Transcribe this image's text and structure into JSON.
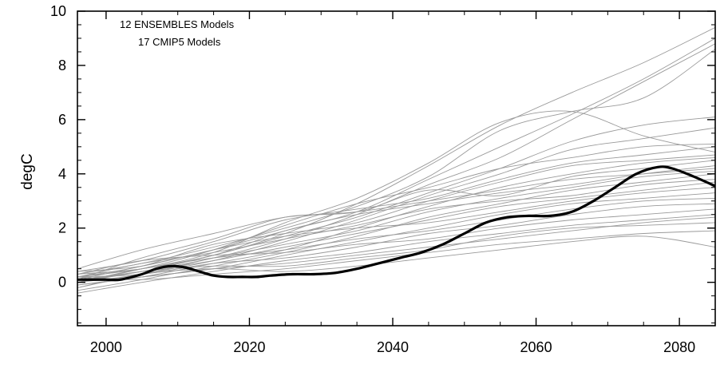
{
  "chart_data": {
    "type": "line",
    "title": "",
    "xlabel": "",
    "ylabel": "degC",
    "xlim": [
      1996,
      2085
    ],
    "ylim": [
      -1.6,
      10
    ],
    "x_ticks": [
      2000,
      2020,
      2040,
      2060,
      2080
    ],
    "x_tick_labels": [
      "2000",
      "2020",
      "2040",
      "2060",
      "2080"
    ],
    "y_ticks": [
      0,
      2,
      4,
      6,
      8,
      10
    ],
    "y_tick_labels": [
      "0",
      "2",
      "4",
      "6",
      "8",
      "10"
    ],
    "grid": false,
    "annotations": [
      "12 ENSEMBLES Models",
      "17 CMIP5 Models"
    ],
    "colors": {
      "ensemble_line": "#9a9a9a",
      "highlight_line": "#000000"
    },
    "highlight_series": {
      "x": [
        1996,
        1998,
        2000,
        2002,
        2005,
        2007,
        2009,
        2011,
        2013,
        2015,
        2017,
        2019,
        2021,
        2023,
        2026,
        2029,
        2032,
        2035,
        2038,
        2041,
        2044,
        2047,
        2050,
        2053,
        2056,
        2059,
        2062,
        2065,
        2068,
        2071,
        2074,
        2077,
        2079,
        2082,
        2085
      ],
      "y": [
        0.1,
        0.1,
        0.1,
        0.1,
        0.3,
        0.5,
        0.6,
        0.55,
        0.4,
        0.25,
        0.2,
        0.2,
        0.2,
        0.25,
        0.3,
        0.3,
        0.35,
        0.5,
        0.7,
        0.9,
        1.1,
        1.4,
        1.8,
        2.2,
        2.4,
        2.45,
        2.45,
        2.6,
        3.0,
        3.5,
        4.0,
        4.25,
        4.2,
        3.9,
        3.55
      ]
    },
    "ensemble_series": [
      {
        "x": [
          1996,
          2005,
          2015,
          2025,
          2035,
          2045,
          2055,
          2065,
          2075,
          2085
        ],
        "y": [
          0.2,
          0.5,
          1.0,
          1.8,
          2.9,
          4.3,
          5.8,
          7.0,
          8.1,
          9.4
        ]
      },
      {
        "x": [
          1996,
          2005,
          2015,
          2025,
          2035,
          2045,
          2055,
          2065,
          2075,
          2085
        ],
        "y": [
          0.1,
          0.6,
          1.2,
          1.9,
          2.6,
          3.8,
          5.0,
          6.2,
          7.5,
          9.0
        ]
      },
      {
        "x": [
          1996,
          2005,
          2015,
          2025,
          2035,
          2045,
          2055,
          2065,
          2075,
          2085
        ],
        "y": [
          0.0,
          0.4,
          0.9,
          1.6,
          2.5,
          3.6,
          4.6,
          6.0,
          7.4,
          8.8
        ]
      },
      {
        "x": [
          1996,
          2005,
          2015,
          2025,
          2035,
          2045,
          2055,
          2065,
          2075,
          2085
        ],
        "y": [
          0.3,
          0.7,
          1.3,
          2.0,
          2.8,
          3.9,
          5.6,
          6.3,
          6.8,
          8.6
        ]
      },
      {
        "x": [
          1996,
          2005,
          2015,
          2025,
          2035,
          2045,
          2055,
          2065,
          2075,
          2085
        ],
        "y": [
          0.2,
          0.5,
          1.1,
          2.2,
          3.1,
          4.4,
          5.9,
          6.3,
          5.4,
          4.8
        ]
      },
      {
        "x": [
          1996,
          2005,
          2015,
          2025,
          2035,
          2045,
          2055,
          2065,
          2075,
          2085
        ],
        "y": [
          0.1,
          0.4,
          1.0,
          1.7,
          2.4,
          3.3,
          4.2,
          5.2,
          5.8,
          6.1
        ]
      },
      {
        "x": [
          1996,
          2005,
          2015,
          2025,
          2035,
          2045,
          2055,
          2065,
          2075,
          2085
        ],
        "y": [
          -0.2,
          0.3,
          0.8,
          1.5,
          2.3,
          3.2,
          4.0,
          4.9,
          5.3,
          5.7
        ]
      },
      {
        "x": [
          1996,
          2005,
          2015,
          2025,
          2035,
          2045,
          2055,
          2065,
          2075,
          2085
        ],
        "y": [
          0.0,
          0.5,
          1.2,
          2.1,
          2.9,
          3.5,
          4.2,
          4.6,
          5.0,
          5.1
        ]
      },
      {
        "x": [
          1996,
          2005,
          2015,
          2025,
          2035,
          2045,
          2055,
          2065,
          2075,
          2085
        ],
        "y": [
          0.4,
          0.8,
          1.5,
          2.3,
          2.7,
          3.1,
          3.8,
          4.4,
          4.7,
          5.0
        ]
      },
      {
        "x": [
          1996,
          2005,
          2015,
          2025,
          2035,
          2045,
          2055,
          2065,
          2075,
          2085
        ],
        "y": [
          0.2,
          0.6,
          1.4,
          1.8,
          2.2,
          3.0,
          3.7,
          4.3,
          4.5,
          4.7
        ]
      },
      {
        "x": [
          1996,
          2005,
          2015,
          2025,
          2035,
          2045,
          2055,
          2065,
          2075,
          2085
        ],
        "y": [
          -0.1,
          0.2,
          0.7,
          1.2,
          2.0,
          2.8,
          3.5,
          4.0,
          4.4,
          4.6
        ]
      },
      {
        "x": [
          1996,
          2005,
          2015,
          2025,
          2035,
          2045,
          2055,
          2065,
          2075,
          2085
        ],
        "y": [
          0.1,
          0.9,
          1.6,
          2.4,
          2.6,
          3.4,
          3.2,
          3.9,
          4.2,
          4.5
        ]
      },
      {
        "x": [
          1996,
          2005,
          2015,
          2025,
          2035,
          2045,
          2055,
          2065,
          2075,
          2085
        ],
        "y": [
          0.3,
          0.5,
          1.0,
          1.9,
          2.5,
          2.9,
          3.3,
          3.6,
          4.0,
          4.3
        ]
      },
      {
        "x": [
          1996,
          2005,
          2015,
          2025,
          2035,
          2045,
          2055,
          2065,
          2075,
          2085
        ],
        "y": [
          0.0,
          0.3,
          0.9,
          1.4,
          1.9,
          2.6,
          3.1,
          3.5,
          3.9,
          4.1
        ]
      },
      {
        "x": [
          1996,
          2005,
          2015,
          2025,
          2035,
          2045,
          2055,
          2065,
          2075,
          2085
        ],
        "y": [
          -0.3,
          0.1,
          0.6,
          1.1,
          1.7,
          2.4,
          2.9,
          3.4,
          3.7,
          4.0
        ]
      },
      {
        "x": [
          1996,
          2005,
          2015,
          2025,
          2035,
          2045,
          2055,
          2065,
          2075,
          2085
        ],
        "y": [
          0.2,
          0.7,
          1.1,
          1.6,
          2.1,
          2.7,
          3.0,
          3.2,
          3.6,
          3.8
        ]
      },
      {
        "x": [
          1996,
          2005,
          2015,
          2025,
          2035,
          2045,
          2055,
          2065,
          2075,
          2085
        ],
        "y": [
          0.1,
          0.4,
          0.8,
          1.3,
          1.8,
          2.3,
          2.8,
          3.1,
          3.4,
          3.7
        ]
      },
      {
        "x": [
          1996,
          2005,
          2015,
          2025,
          2035,
          2045,
          2055,
          2065,
          2075,
          2085
        ],
        "y": [
          0.4,
          0.6,
          1.2,
          1.7,
          2.0,
          2.2,
          2.6,
          3.0,
          3.3,
          3.5
        ]
      },
      {
        "x": [
          1996,
          2005,
          2015,
          2025,
          2035,
          2045,
          2055,
          2065,
          2075,
          2085
        ],
        "y": [
          -0.1,
          0.2,
          0.5,
          1.0,
          1.5,
          2.0,
          2.5,
          2.9,
          3.1,
          3.3
        ]
      },
      {
        "x": [
          1996,
          2005,
          2015,
          2025,
          2035,
          2045,
          2055,
          2065,
          2075,
          2085
        ],
        "y": [
          0.0,
          0.5,
          0.9,
          1.2,
          1.6,
          1.9,
          2.3,
          2.7,
          3.0,
          3.1
        ]
      },
      {
        "x": [
          1996,
          2005,
          2015,
          2025,
          2035,
          2045,
          2055,
          2065,
          2075,
          2085
        ],
        "y": [
          0.2,
          0.3,
          0.7,
          0.9,
          1.3,
          1.8,
          2.1,
          2.5,
          2.8,
          2.9
        ]
      },
      {
        "x": [
          1996,
          2005,
          2015,
          2025,
          2035,
          2045,
          2055,
          2065,
          2075,
          2085
        ],
        "y": [
          0.3,
          0.8,
          1.0,
          1.1,
          1.4,
          1.6,
          2.0,
          2.3,
          2.5,
          2.7
        ]
      },
      {
        "x": [
          1996,
          2005,
          2015,
          2025,
          2035,
          2045,
          2055,
          2065,
          2075,
          2085
        ],
        "y": [
          -0.4,
          0.0,
          0.4,
          0.8,
          1.1,
          1.5,
          1.8,
          2.1,
          2.3,
          2.5
        ]
      },
      {
        "x": [
          1996,
          2005,
          2015,
          2025,
          2035,
          2045,
          2055,
          2065,
          2075,
          2085
        ],
        "y": [
          0.1,
          0.2,
          0.5,
          0.7,
          1.0,
          1.3,
          1.6,
          1.9,
          2.2,
          2.4
        ]
      },
      {
        "x": [
          1996,
          2005,
          2015,
          2025,
          2035,
          2045,
          2055,
          2065,
          2075,
          2085
        ],
        "y": [
          0.0,
          0.4,
          0.6,
          0.6,
          0.9,
          1.2,
          1.7,
          2.0,
          2.1,
          2.2
        ]
      },
      {
        "x": [
          1996,
          2005,
          2015,
          2025,
          2035,
          2045,
          2055,
          2065,
          2075,
          2085
        ],
        "y": [
          0.2,
          0.1,
          0.3,
          0.5,
          0.8,
          1.1,
          1.4,
          1.6,
          1.8,
          1.9
        ]
      },
      {
        "x": [
          1996,
          2005,
          2015,
          2025,
          2035,
          2045,
          2055,
          2065,
          2075,
          2085
        ],
        "y": [
          -0.2,
          0.3,
          0.5,
          0.4,
          0.6,
          0.9,
          1.2,
          1.5,
          1.7,
          1.3
        ]
      },
      {
        "x": [
          1996,
          2005,
          2015,
          2025,
          2035,
          2045,
          2055,
          2065,
          2075,
          2085
        ],
        "y": [
          0.5,
          1.2,
          1.8,
          2.4,
          2.6,
          3.0,
          3.4,
          3.8,
          4.0,
          4.2
        ]
      }
    ]
  }
}
